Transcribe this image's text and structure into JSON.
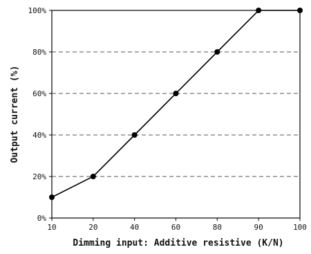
{
  "chart_data": {
    "type": "line",
    "title": "",
    "xlabel": "Dimming input: Additive resistive (K/N)",
    "ylabel": "Output current (%)",
    "x_categories": [
      "10",
      "20",
      "40",
      "60",
      "80",
      "90",
      "100"
    ],
    "y_ticks": [
      "0%",
      "20%",
      "40%",
      "60%",
      "80%",
      "100%"
    ],
    "ylim": [
      0,
      100
    ],
    "grid": "horizontal dashed",
    "legend": "none",
    "series": [
      {
        "x": [
          "10",
          "20",
          "40",
          "60",
          "80",
          "90",
          "100"
        ],
        "y": [
          10,
          20,
          40,
          60,
          80,
          100,
          100
        ]
      }
    ],
    "colors": {
      "line": "#000000",
      "marker": "#000000",
      "grid": "#555555"
    }
  }
}
